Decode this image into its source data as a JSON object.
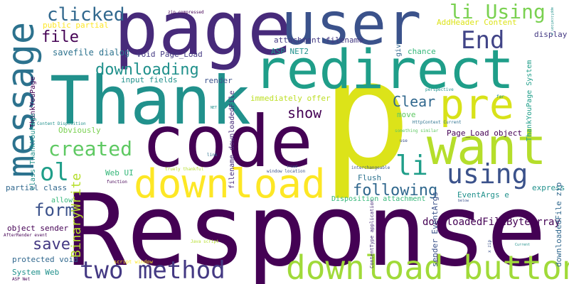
{
  "palette": {
    "background": "#ffffff",
    "dark_purple": "#440154",
    "indigo": "#3b528b",
    "blue": "#31688e",
    "teal": "#21918c",
    "green": "#35b779",
    "lime": "#90d743",
    "yellow": "#fde725"
  },
  "words": [
    {
      "text": "Response"
    },
    {
      "text": "p"
    },
    {
      "text": "code"
    },
    {
      "text": "page"
    },
    {
      "text": "user"
    },
    {
      "text": "redirect"
    },
    {
      "text": "Thank"
    },
    {
      "text": "message"
    },
    {
      "text": "want"
    },
    {
      "text": "pre"
    },
    {
      "text": "download"
    },
    {
      "text": "download button"
    },
    {
      "text": "two method"
    },
    {
      "text": "End"
    },
    {
      "text": "li Using"
    },
    {
      "text": "clicked"
    },
    {
      "text": "li"
    },
    {
      "text": "using"
    },
    {
      "text": "created"
    },
    {
      "text": "ol"
    },
    {
      "text": "downloading"
    },
    {
      "text": "form"
    },
    {
      "text": "following"
    },
    {
      "text": "save"
    },
    {
      "text": "file"
    },
    {
      "text": "Clear"
    },
    {
      "text": "show"
    },
    {
      "text": "BinaryWrite"
    },
    {
      "text": "downloadedFileByteArray"
    },
    {
      "text": "savefile dialog"
    },
    {
      "text": "public partial"
    },
    {
      "text": "void Page_Load"
    },
    {
      "text": "input fields"
    },
    {
      "text": "render"
    },
    {
      "text": "ASP NET2"
    },
    {
      "text": "attachment filename"
    },
    {
      "text": "AddHeader Content"
    },
    {
      "text": "display"
    },
    {
      "text": "chance"
    },
    {
      "text": "immediately offer"
    },
    {
      "text": "move"
    },
    {
      "text": "Page_Load object"
    },
    {
      "text": "Obviously"
    },
    {
      "text": "partial class"
    },
    {
      "text": "object sender"
    },
    {
      "text": "protected void"
    },
    {
      "text": "System Web"
    },
    {
      "text": "Web UI"
    },
    {
      "text": "Flush"
    },
    {
      "text": "EventArgs e"
    },
    {
      "text": "express"
    },
    {
      "text": "allow"
    },
    {
      "text": "Disposition attachment"
    },
    {
      "text": "ThankYouPage"
    },
    {
      "text": "ThankYouPage System"
    },
    {
      "text": "sender EventArgs"
    },
    {
      "text": "downloadedFile zip"
    },
    {
      "text": "filename downloadedFile"
    },
    {
      "text": "class ThankYouPage"
    },
    {
      "text": "give"
    },
    {
      "text": "x zip"
    },
    {
      "text": "ContentType application"
    },
    {
      "text": "application x"
    },
    {
      "text": "zip compressed"
    },
    {
      "text": "Content Disposition"
    },
    {
      "text": "HttpContext Current"
    },
    {
      "text": "something similar"
    },
    {
      "text": "script window"
    },
    {
      "text": "truely thankful"
    },
    {
      "text": "window location"
    },
    {
      "text": "interchangeable"
    },
    {
      "text": "Java script"
    },
    {
      "text": "AfterRender event"
    },
    {
      "text": "ASP Net"
    },
    {
      "text": "function"
    },
    {
      "text": "perspective"
    },
    {
      "text": "far"
    },
    {
      "text": "use"
    },
    {
      "text": "link"
    },
    {
      "text": "below"
    },
    {
      "text": "NET"
    },
    {
      "text": "tried"
    },
    {
      "text": "Current"
    }
  ]
}
